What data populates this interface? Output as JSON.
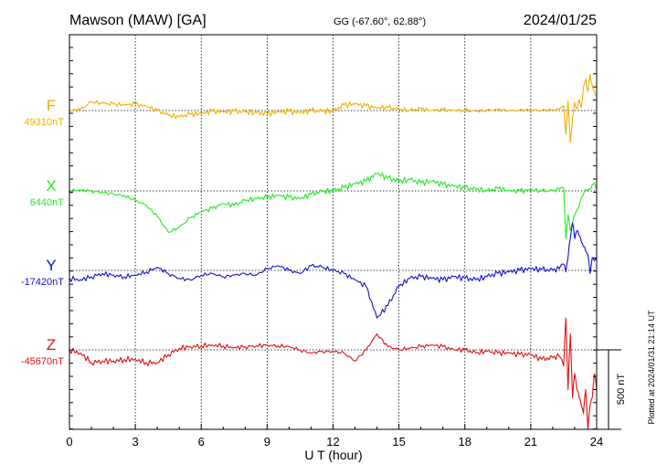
{
  "header": {
    "station": "Mawson (MAW)  [GA]",
    "coords": "GG (-67.60°,  62.88°)",
    "date": "2024/01/25"
  },
  "plotted_note": "Plotted at 2024/01/31 21:14 UT",
  "chart_data": {
    "type": "line",
    "xlabel": "U T (hour)",
    "xlim": [
      0,
      24
    ],
    "xticks": [
      "0",
      "3",
      "6",
      "9",
      "12",
      "15",
      "18",
      "21",
      "24"
    ],
    "scale_bar": {
      "label": "500 nT",
      "nT": 500
    },
    "series": [
      {
        "name": "F",
        "baseline_label": "49310nT",
        "color": "#f2ae00",
        "x": [
          0,
          0.5,
          1.0,
          1.5,
          2.0,
          2.5,
          3.0,
          3.5,
          4.0,
          4.5,
          5.0,
          5.5,
          6.0,
          6.5,
          7.0,
          7.5,
          8.0,
          8.5,
          9.0,
          9.5,
          10.0,
          10.5,
          11.0,
          11.5,
          12.0,
          12.5,
          13.0,
          13.5,
          14.0,
          14.5,
          15.0,
          15.5,
          16.0,
          16.5,
          17.0,
          17.5,
          18.0,
          18.5,
          19.0,
          19.5,
          20.0,
          20.5,
          21.0,
          21.5,
          22.0,
          22.3,
          22.5,
          22.6,
          22.7,
          22.8,
          22.9,
          23.0,
          23.1,
          23.2,
          23.3,
          23.4,
          23.5,
          23.6,
          23.7,
          23.8,
          23.9,
          24.0
        ],
        "y": [
          0,
          5,
          55,
          45,
          40,
          35,
          40,
          25,
          0,
          -30,
          -40,
          -25,
          -20,
          -5,
          -10,
          -5,
          -10,
          -15,
          -20,
          -10,
          -5,
          -15,
          0,
          -5,
          -5,
          35,
          40,
          30,
          15,
          20,
          5,
          0,
          10,
          0,
          5,
          0,
          0,
          -5,
          0,
          5,
          0,
          0,
          5,
          0,
          5,
          10,
          30,
          -150,
          60,
          -200,
          -50,
          50,
          10,
          70,
          20,
          150,
          200,
          120,
          230,
          160,
          120,
          90
        ]
      },
      {
        "name": "X",
        "baseline_label": "6440nT",
        "color": "#22e822",
        "x": [
          0,
          0.5,
          1.0,
          1.5,
          2.0,
          2.5,
          3.0,
          3.5,
          4.0,
          4.5,
          5.0,
          5.5,
          6.0,
          6.5,
          7.0,
          7.5,
          8.0,
          8.5,
          9.0,
          9.5,
          10.0,
          10.5,
          11.0,
          11.5,
          12.0,
          12.5,
          13.0,
          13.5,
          14.0,
          14.5,
          15.0,
          15.5,
          16.0,
          16.5,
          17.0,
          17.5,
          18.0,
          18.5,
          19.0,
          19.5,
          20.0,
          20.5,
          21.0,
          21.5,
          22.0,
          22.3,
          22.5,
          22.6,
          22.7,
          22.8,
          22.9,
          23.0,
          23.1,
          23.2,
          23.3,
          23.4,
          23.5,
          23.6,
          23.7,
          23.8,
          23.9,
          24.0
        ],
        "y": [
          0,
          5,
          0,
          -10,
          -20,
          -30,
          -60,
          -90,
          -160,
          -260,
          -230,
          -170,
          -130,
          -110,
          -80,
          -90,
          -60,
          -50,
          -40,
          -30,
          -40,
          -50,
          -20,
          -5,
          0,
          20,
          45,
          60,
          110,
          80,
          60,
          70,
          50,
          60,
          40,
          30,
          20,
          10,
          0,
          15,
          0,
          0,
          5,
          0,
          0,
          10,
          20,
          -300,
          -150,
          -250,
          -200,
          -150,
          -120,
          -100,
          -40,
          -20,
          10,
          5,
          10,
          40,
          50,
          10
        ]
      },
      {
        "name": "Y",
        "baseline_label": "-17420nT",
        "color": "#1111cc",
        "x": [
          0,
          0.5,
          1.0,
          1.5,
          2.0,
          2.5,
          3.0,
          3.5,
          4.0,
          4.5,
          5.0,
          5.5,
          6.0,
          6.5,
          7.0,
          7.5,
          8.0,
          8.5,
          9.0,
          9.5,
          10.0,
          10.5,
          11.0,
          11.5,
          12.0,
          12.5,
          13.0,
          13.5,
          14.0,
          14.5,
          15.0,
          15.5,
          16.0,
          16.5,
          17.0,
          17.5,
          18.0,
          18.5,
          19.0,
          19.5,
          20.0,
          20.5,
          21.0,
          21.5,
          22.0,
          22.3,
          22.5,
          22.6,
          22.7,
          22.8,
          22.9,
          23.0,
          23.1,
          23.2,
          23.3,
          23.4,
          23.5,
          23.6,
          23.7,
          23.8,
          23.9,
          24.0
        ],
        "y": [
          -50,
          -60,
          -40,
          -20,
          -30,
          -40,
          -30,
          -10,
          20,
          -20,
          -50,
          -60,
          -30,
          -20,
          -40,
          -30,
          -20,
          -30,
          10,
          30,
          0,
          -20,
          30,
          20,
          0,
          -20,
          -60,
          -100,
          -300,
          -220,
          -100,
          -50,
          -40,
          -50,
          -60,
          -40,
          -50,
          -60,
          -40,
          -20,
          -10,
          0,
          10,
          5,
          0,
          10,
          40,
          -10,
          80,
          200,
          300,
          200,
          250,
          220,
          180,
          150,
          120,
          100,
          -20,
          80,
          60,
          70
        ]
      },
      {
        "name": "Z",
        "baseline_label": "-45670nT",
        "color": "#dd1111",
        "x": [
          0,
          0.5,
          1.0,
          1.5,
          2.0,
          2.5,
          3.0,
          3.5,
          4.0,
          4.5,
          5.0,
          5.5,
          6.0,
          6.5,
          7.0,
          7.5,
          8.0,
          8.5,
          9.0,
          9.5,
          10.0,
          10.5,
          11.0,
          11.5,
          12.0,
          12.5,
          13.0,
          13.5,
          14.0,
          14.5,
          15.0,
          15.5,
          16.0,
          16.5,
          17.0,
          17.5,
          18.0,
          18.5,
          19.0,
          19.5,
          20.0,
          20.5,
          21.0,
          21.5,
          22.0,
          22.3,
          22.5,
          22.6,
          22.7,
          22.8,
          22.9,
          23.0,
          23.1,
          23.2,
          23.3,
          23.4,
          23.5,
          23.6,
          23.7,
          23.8,
          23.9,
          24.0
        ],
        "y": [
          0,
          -20,
          -80,
          -70,
          -70,
          -60,
          -60,
          -80,
          -80,
          -30,
          10,
          20,
          25,
          30,
          25,
          15,
          20,
          25,
          30,
          25,
          20,
          0,
          -20,
          -10,
          -10,
          -20,
          -70,
          0,
          100,
          20,
          0,
          10,
          20,
          30,
          20,
          0,
          0,
          -20,
          -10,
          -20,
          -20,
          -30,
          -30,
          -60,
          -50,
          -40,
          -100,
          200,
          -250,
          100,
          -300,
          -150,
          -250,
          -300,
          -350,
          -400,
          -250,
          -500,
          -350,
          -300,
          -150,
          -250
        ]
      }
    ]
  }
}
